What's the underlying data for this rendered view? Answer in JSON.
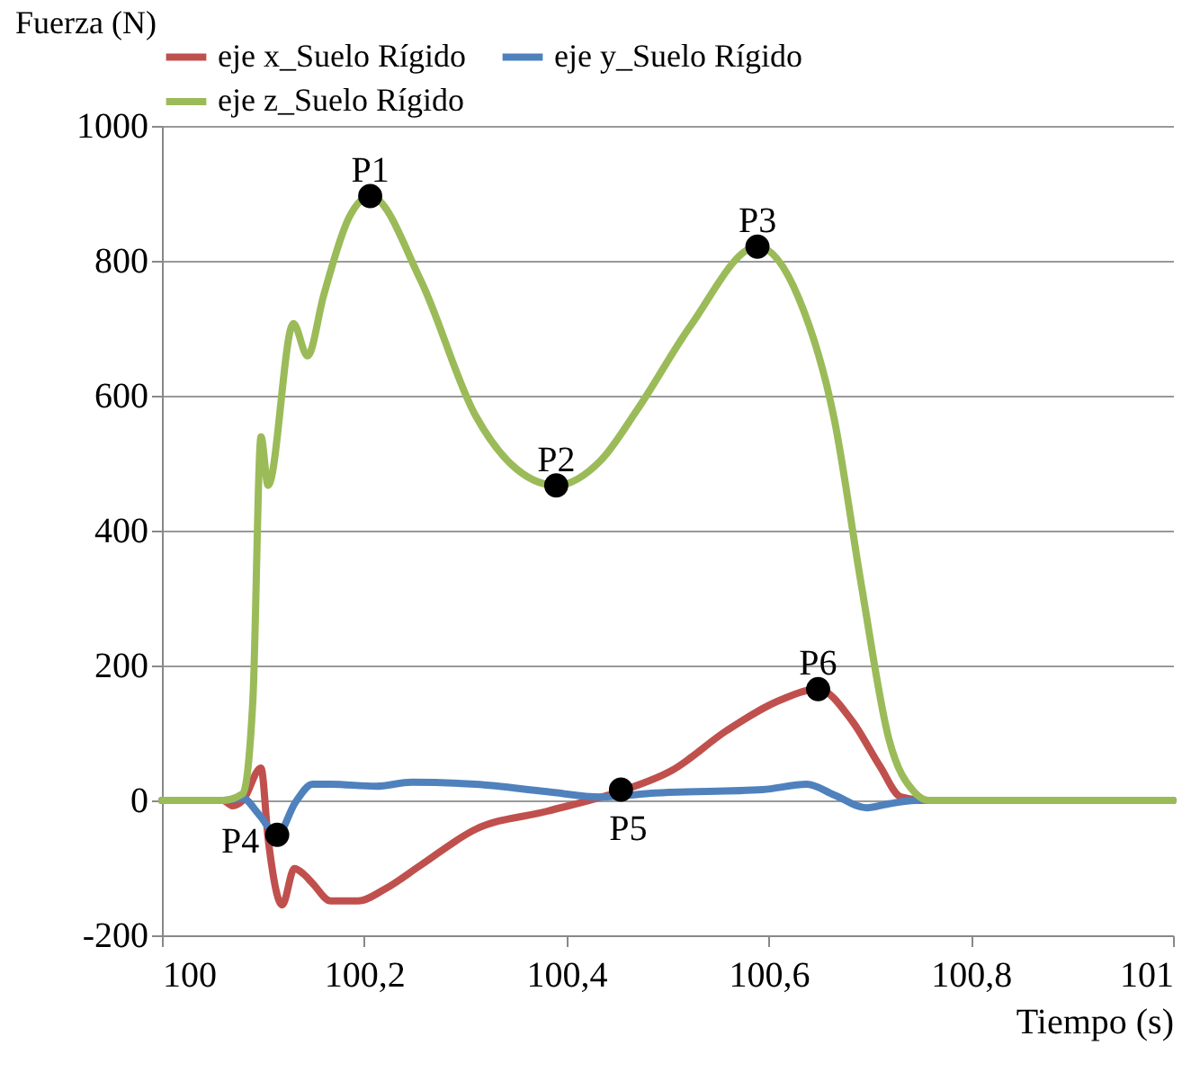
{
  "chart_data": {
    "type": "line",
    "xlabel": "Tiempo (s)",
    "ylabel": "Fuerza (N)",
    "xlim": [
      100,
      101
    ],
    "xticks": [
      100,
      {
        "value": 100.2,
        "label": "100,2"
      },
      {
        "value": 100.4,
        "label": "100,4"
      },
      {
        "value": 100.6,
        "label": "100,6"
      },
      {
        "value": 100.8,
        "label": "100,8"
      },
      101
    ],
    "ylim": [
      -200,
      1000
    ],
    "yticks": [
      -200,
      0,
      200,
      400,
      600,
      800,
      1000
    ],
    "grid": "y",
    "legend": "top",
    "line_style": "solid",
    "series": [
      {
        "name": "eje x_Suelo Rígido",
        "color": "#c0504d",
        "x": [
          100,
          100.06,
          100.07,
          100.08,
          100.098,
          100.105,
          100.119,
          100.131,
          100.14,
          100.149,
          100.167,
          100.194,
          100.221,
          100.256,
          100.31,
          100.381,
          100.452,
          100.505,
          100.559,
          100.612,
          100.649,
          100.683,
          100.71,
          100.731,
          100.758,
          101
        ],
        "values": [
          0,
          0,
          -8,
          0,
          48,
          -56,
          -155,
          -101,
          -109,
          -123,
          -149,
          -149,
          -131,
          -96,
          -43,
          -16,
          13,
          45,
          104,
          149,
          165,
          117,
          51,
          5,
          0,
          0
        ]
      },
      {
        "name": "eje y_Suelo Rígido",
        "color": "#4f81bd",
        "x": [
          100,
          100.06,
          100.08,
          100.096,
          100.114,
          100.132,
          100.149,
          100.167,
          100.212,
          100.247,
          100.31,
          100.381,
          100.434,
          100.488,
          100.594,
          100.638,
          100.665,
          100.697,
          100.719,
          100.745,
          101
        ],
        "values": [
          0,
          0,
          3,
          -21,
          -51,
          -3,
          24,
          24,
          21,
          27,
          24,
          13,
          5,
          11,
          16,
          24,
          8,
          -11,
          -5,
          0,
          0
        ]
      },
      {
        "name": "eje z_Suelo Rígido",
        "color": "#9bbb59",
        "x": [
          100,
          100.06,
          100.08,
          100.09,
          100.098,
          100.105,
          100.13,
          100.144,
          100.16,
          100.185,
          100.206,
          100.256,
          100.31,
          100.345,
          100.39,
          100.434,
          100.47,
          100.523,
          100.589,
          100.63,
          100.665,
          100.692,
          100.719,
          100.745,
          100.758,
          101
        ],
        "values": [
          0,
          0,
          10,
          150,
          539,
          467,
          707,
          659,
          749,
          864,
          896,
          771,
          571,
          499,
          467,
          504,
          579,
          704,
          821,
          744,
          565,
          317,
          91,
          11,
          0,
          0
        ]
      },
      {
        "type": "scatter",
        "color": "#000000",
        "marker": "circle",
        "x": [
          100.206,
          100.39,
          100.589,
          100.114,
          100.454,
          100.649
        ],
        "values": [
          896,
          467,
          821,
          -51,
          16,
          165
        ]
      }
    ],
    "annotations": [
      {
        "text": "P1",
        "x": 100.206,
        "y": 896
      },
      {
        "text": "P2",
        "x": 100.39,
        "y": 467
      },
      {
        "text": "P3",
        "x": 100.589,
        "y": 821
      },
      {
        "text": "P4",
        "x": 100.114,
        "y": -51
      },
      {
        "text": "P5",
        "x": 100.454,
        "y": 16
      },
      {
        "text": "P6",
        "x": 100.649,
        "y": 165
      }
    ]
  }
}
